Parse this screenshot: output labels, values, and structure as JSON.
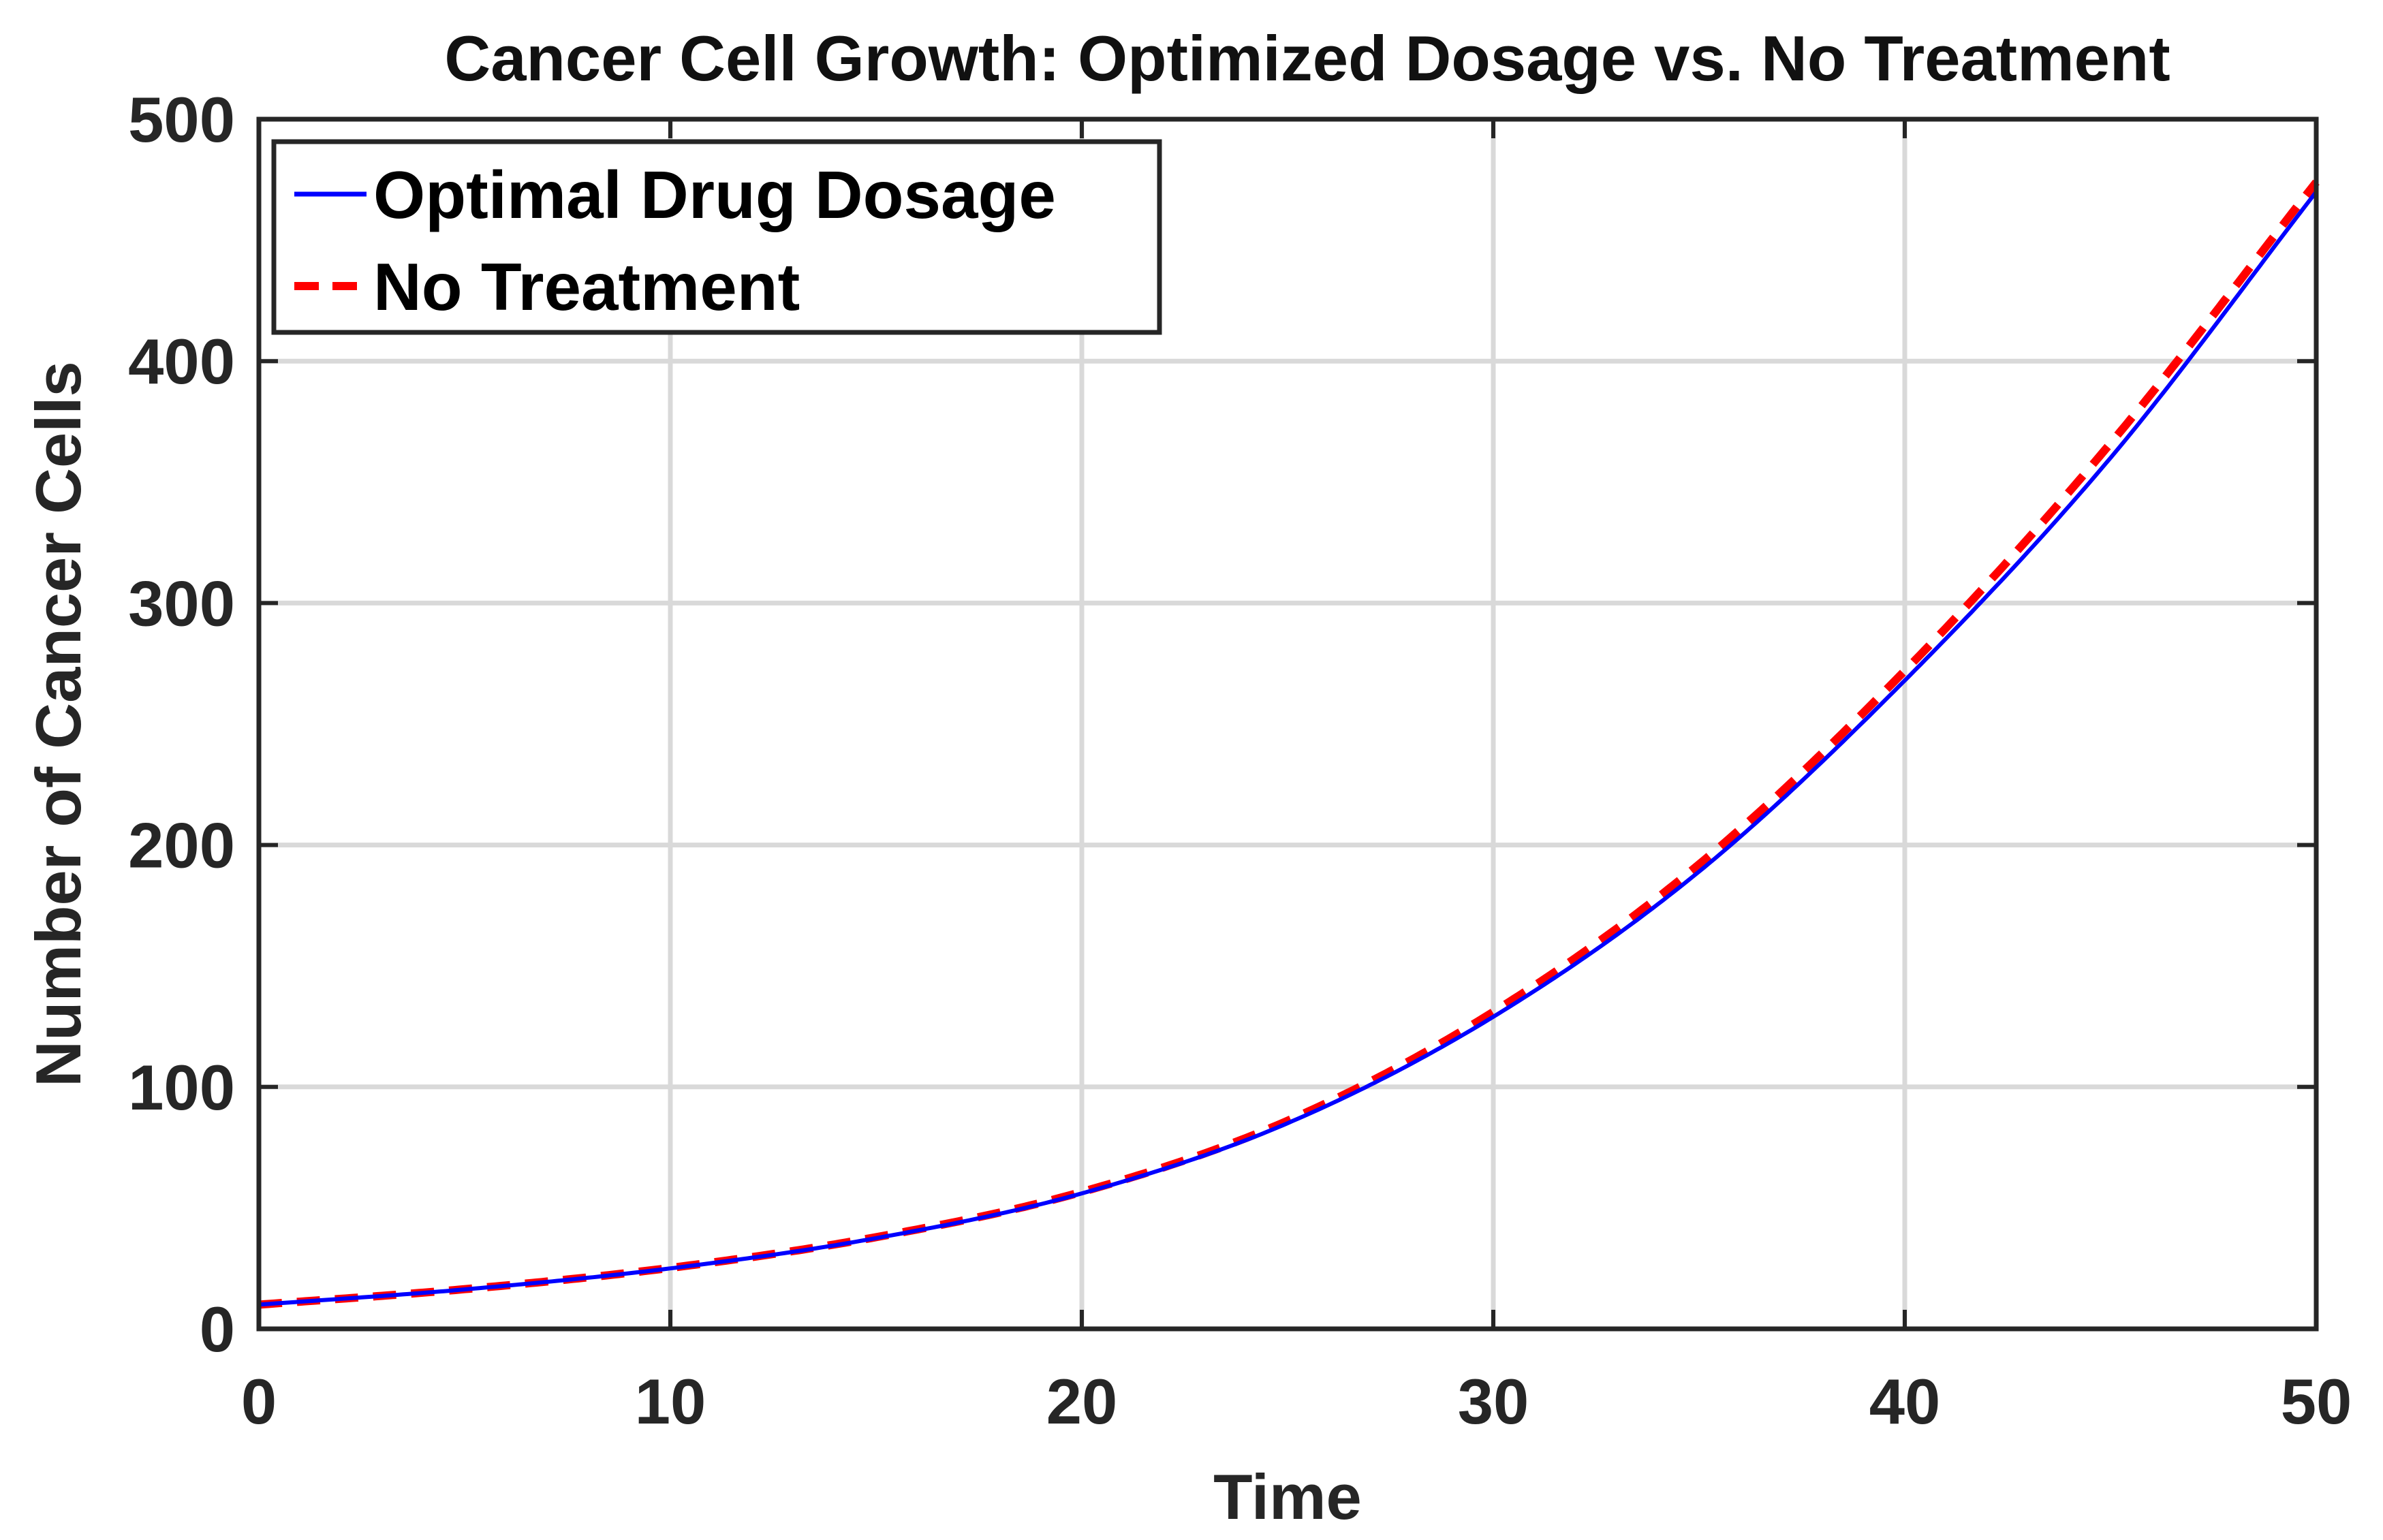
{
  "chart_data": {
    "type": "line",
    "title": "Cancer Cell Growth: Optimized Dosage vs. No Treatment",
    "xlabel": "Time",
    "ylabel": "Number of Cancer Cells",
    "xlim": [
      0,
      50
    ],
    "ylim": [
      0,
      500
    ],
    "xticks": [
      0,
      10,
      20,
      30,
      40,
      50
    ],
    "yticks": [
      0,
      100,
      200,
      300,
      400,
      500
    ],
    "grid": true,
    "legend_position": "top-left",
    "x": [
      0,
      5,
      10,
      15,
      20,
      25,
      30,
      35,
      40,
      45,
      50
    ],
    "series": [
      {
        "name": "Optimal Drug Dosage",
        "color": "#0000ff",
        "style": "solid",
        "values": [
          10,
          16.3,
          25,
          37.5,
          56,
          85,
          129,
          189,
          268,
          360,
          470
        ]
      },
      {
        "name": "No Treatment",
        "color": "#ff0000",
        "style": "dashed",
        "values": [
          10,
          16.4,
          25.2,
          37.9,
          56.6,
          86,
          131,
          192,
          272,
          366,
          474
        ]
      }
    ]
  }
}
